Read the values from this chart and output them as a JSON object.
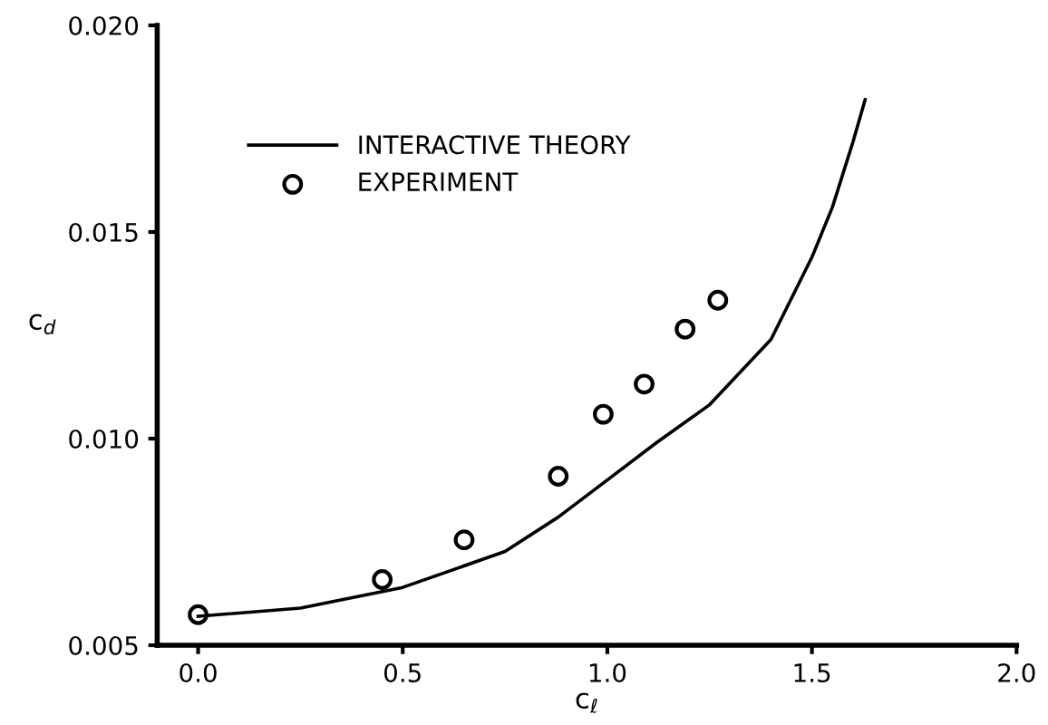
{
  "chart_data": {
    "type": "scatter",
    "xlabel": "c$_{ℓ}$",
    "ylabel": "c$_{d}$",
    "xlim": [
      -0.1,
      2.0
    ],
    "xticks": [
      {
        "value": 0,
        "label": "0.0"
      },
      {
        "value": 0.5,
        "label": "0.5"
      },
      {
        "value": 1.0,
        "label": "1.0"
      },
      {
        "value": 1.5,
        "label": "1.5"
      },
      {
        "value": 2.0,
        "label": "2.0"
      }
    ],
    "ylim": [
      0.005,
      0.02
    ],
    "yticks": [
      0.005,
      {
        "value": 0.01,
        "label": "0.010"
      },
      0.015,
      {
        "value": 0.02,
        "label": "0.020"
      }
    ],
    "grid": false,
    "legend": "top left",
    "series": [
      {
        "name": "INTERACTIVE THEORY",
        "type": "line",
        "color": "#000000",
        "marker": "none",
        "line_style": "solid",
        "x": [
          0.0,
          0.25,
          0.5,
          0.75,
          0.88,
          1.0,
          1.12,
          1.25,
          1.4,
          1.5,
          1.55,
          1.6,
          1.63
        ],
        "values": [
          0.0057,
          0.0059,
          0.0064,
          0.00727,
          0.0081,
          0.009,
          0.0099,
          0.01082,
          0.0124,
          0.01439,
          0.0156,
          0.01717,
          0.0182
        ]
      },
      {
        "name": "EXPERIMENT",
        "color": "#000000",
        "marker": "circle",
        "x": [
          0.0,
          0.45,
          0.65,
          0.88,
          0.99,
          1.09,
          1.19,
          1.27
        ],
        "values": [
          0.00574,
          0.00659,
          0.00755,
          0.00909,
          0.01059,
          0.01132,
          0.01265,
          0.01335
        ]
      }
    ]
  }
}
